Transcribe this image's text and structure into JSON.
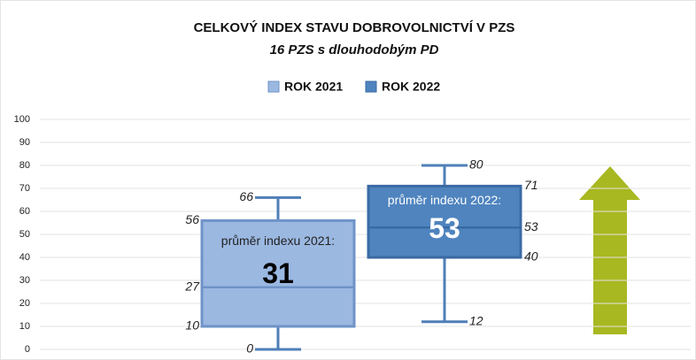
{
  "chart_data": {
    "type": "box",
    "title": "CELKOVÝ INDEX STAVU DOBROVOLNICTVÍ V PZS",
    "subtitle": "16 PZS s dlouhodobým PD",
    "ylim": [
      0,
      100
    ],
    "yticks": [
      0,
      10,
      20,
      30,
      40,
      50,
      60,
      70,
      80,
      90,
      100
    ],
    "grid": true,
    "series": [
      {
        "name": "ROK 2021",
        "color": "#9bb8e1",
        "stroke": "#6f93c8",
        "min": 0,
        "q1": 10,
        "median": 27,
        "q3": 56,
        "max": 66,
        "annotation": "průměr indexu 2021:",
        "mean": 31
      },
      {
        "name": "ROK 2022",
        "color": "#4f84bf",
        "stroke": "#3a6aa3",
        "min": 12,
        "q1": 40,
        "median": 53,
        "q3": 71,
        "max": 80,
        "annotation": "průměr indexu 2022:",
        "mean": 53
      }
    ]
  }
}
